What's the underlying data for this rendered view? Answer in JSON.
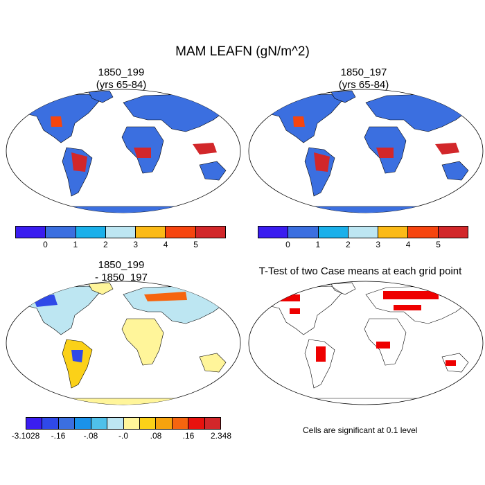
{
  "title": "MAM LEAFN (gN/m^2)",
  "panels": {
    "top_left": {
      "title_line1": "1850_199",
      "title_line2": "(yrs 65-84)"
    },
    "top_right": {
      "title_line1": "1850_197",
      "title_line2": "(yrs 65-84)"
    },
    "bottom_left": {
      "title_line1": "1850_199",
      "title_line2": "- 1850_197"
    },
    "bottom_right": {
      "title": "T-Test of two Case means at each grid point",
      "note": "Cells are significant at 0.1 level"
    }
  },
  "colorbar_abs": {
    "colors": [
      "#3a1df0",
      "#3b6fe0",
      "#1bb0ea",
      "#bde6f2",
      "#fbba17",
      "#f6450f",
      "#d2272a"
    ],
    "labels": [
      "0",
      "1",
      "2",
      "3",
      "4",
      "5"
    ]
  },
  "colorbar_diff": {
    "colors": [
      "#3a1df0",
      "#2f49e8",
      "#3b6fe0",
      "#1a92ea",
      "#4fc0ea",
      "#bde6f2",
      "#fff59a",
      "#fbd118",
      "#f7a30d",
      "#f6650f",
      "#e8120e",
      "#d2272a"
    ],
    "labels": [
      "-3.1028",
      "-.16",
      "-.08",
      "-.0",
      ".08",
      ".16",
      "2.348"
    ]
  },
  "colors": {
    "land_absolute": "#3b6fe0",
    "high_value": "#d2272a",
    "diff_land": "#fff59a",
    "significant": "#ee0000"
  }
}
